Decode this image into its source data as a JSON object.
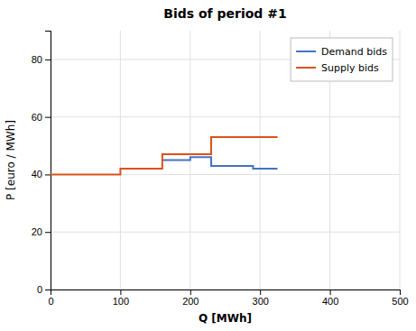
{
  "chart_data": {
    "type": "line",
    "title": "Bids of period #1",
    "x_label": "Q [MWh]",
    "y_label": "P [euro / MWh]",
    "series": [
      {
        "name": "Demand bids",
        "color": "#4472C4",
        "x": [
          160,
          200,
          200,
          230,
          230,
          290,
          290,
          325
        ],
        "values": [
          45,
          45,
          46,
          46,
          43,
          43,
          42,
          42
        ]
      },
      {
        "name": "Supply bids",
        "color": "#D95319",
        "x": [
          0,
          100,
          100,
          160,
          160,
          230,
          230,
          325
        ],
        "values": [
          40,
          40,
          42,
          42,
          47,
          47,
          53,
          53
        ]
      }
    ],
    "xlim": [
      0,
      500
    ],
    "ylim": [
      0,
      90
    ],
    "xticks": [
      0,
      100,
      200,
      300,
      400,
      500
    ],
    "yticks": [
      0,
      20,
      40,
      60,
      80
    ],
    "grid": true,
    "legend": "upper right"
  }
}
